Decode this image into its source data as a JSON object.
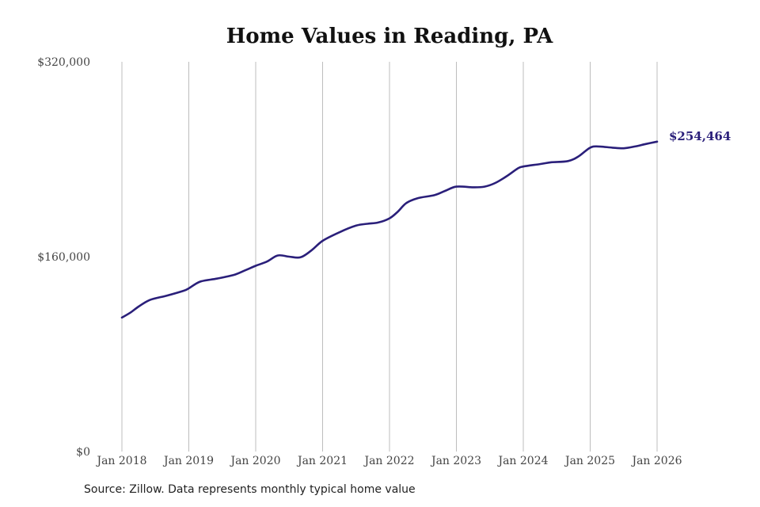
{
  "chart_data": {
    "type": "line",
    "title": "Home Values in Reading, PA",
    "xlabel": "",
    "ylabel": "",
    "ylim": [
      0,
      320000
    ],
    "y_ticks": [
      {
        "value": 0,
        "label": "$0"
      },
      {
        "value": 160000,
        "label": "$160,000"
      },
      {
        "value": 320000,
        "label": "$320,000"
      }
    ],
    "x_range": [
      2018,
      2026
    ],
    "x_ticks": [
      {
        "value": 2018,
        "label": "Jan 2018"
      },
      {
        "value": 2019,
        "label": "Jan 2019"
      },
      {
        "value": 2020,
        "label": "Jan 2020"
      },
      {
        "value": 2021,
        "label": "Jan 2021"
      },
      {
        "value": 2022,
        "label": "Jan 2022"
      },
      {
        "value": 2023,
        "label": "Jan 2023"
      },
      {
        "value": 2024,
        "label": "Jan 2024"
      },
      {
        "value": 2025,
        "label": "Jan 2025"
      },
      {
        "value": 2026,
        "label": "Jan 2026"
      }
    ],
    "grid": "vertical",
    "line_color": "#2a1f7a",
    "grid_color": "#bdbdbd",
    "series": [
      {
        "points": [
          [
            2018.0,
            110000
          ],
          [
            2018.125,
            114000
          ],
          [
            2018.25,
            119000
          ],
          [
            2018.42,
            124500
          ],
          [
            2018.67,
            128000
          ],
          [
            2018.92,
            132000
          ],
          [
            2019.0,
            134000
          ],
          [
            2019.17,
            139500
          ],
          [
            2019.42,
            142000
          ],
          [
            2019.67,
            145000
          ],
          [
            2019.83,
            148500
          ],
          [
            2020.0,
            152500
          ],
          [
            2020.17,
            156000
          ],
          [
            2020.33,
            161000
          ],
          [
            2020.5,
            160000
          ],
          [
            2020.67,
            159500
          ],
          [
            2020.83,
            165000
          ],
          [
            2021.0,
            173000
          ],
          [
            2021.25,
            180000
          ],
          [
            2021.5,
            185500
          ],
          [
            2021.67,
            187000
          ],
          [
            2021.83,
            188000
          ],
          [
            2022.0,
            191500
          ],
          [
            2022.125,
            197000
          ],
          [
            2022.25,
            204000
          ],
          [
            2022.42,
            208000
          ],
          [
            2022.67,
            210500
          ],
          [
            2022.83,
            214000
          ],
          [
            2023.0,
            217500
          ],
          [
            2023.25,
            217000
          ],
          [
            2023.42,
            217500
          ],
          [
            2023.58,
            220500
          ],
          [
            2023.75,
            226000
          ],
          [
            2023.92,
            232500
          ],
          [
            2024.0,
            234000
          ],
          [
            2024.25,
            236000
          ],
          [
            2024.42,
            237500
          ],
          [
            2024.67,
            238500
          ],
          [
            2024.83,
            242500
          ],
          [
            2025.0,
            249500
          ],
          [
            2025.125,
            250500
          ],
          [
            2025.33,
            249500
          ],
          [
            2025.5,
            249000
          ],
          [
            2025.67,
            250500
          ],
          [
            2025.83,
            252500
          ],
          [
            2026.0,
            254464
          ]
        ]
      }
    ],
    "end_label": "$254,464"
  },
  "source_text": "Source: Zillow. Data represents monthly typical home value"
}
